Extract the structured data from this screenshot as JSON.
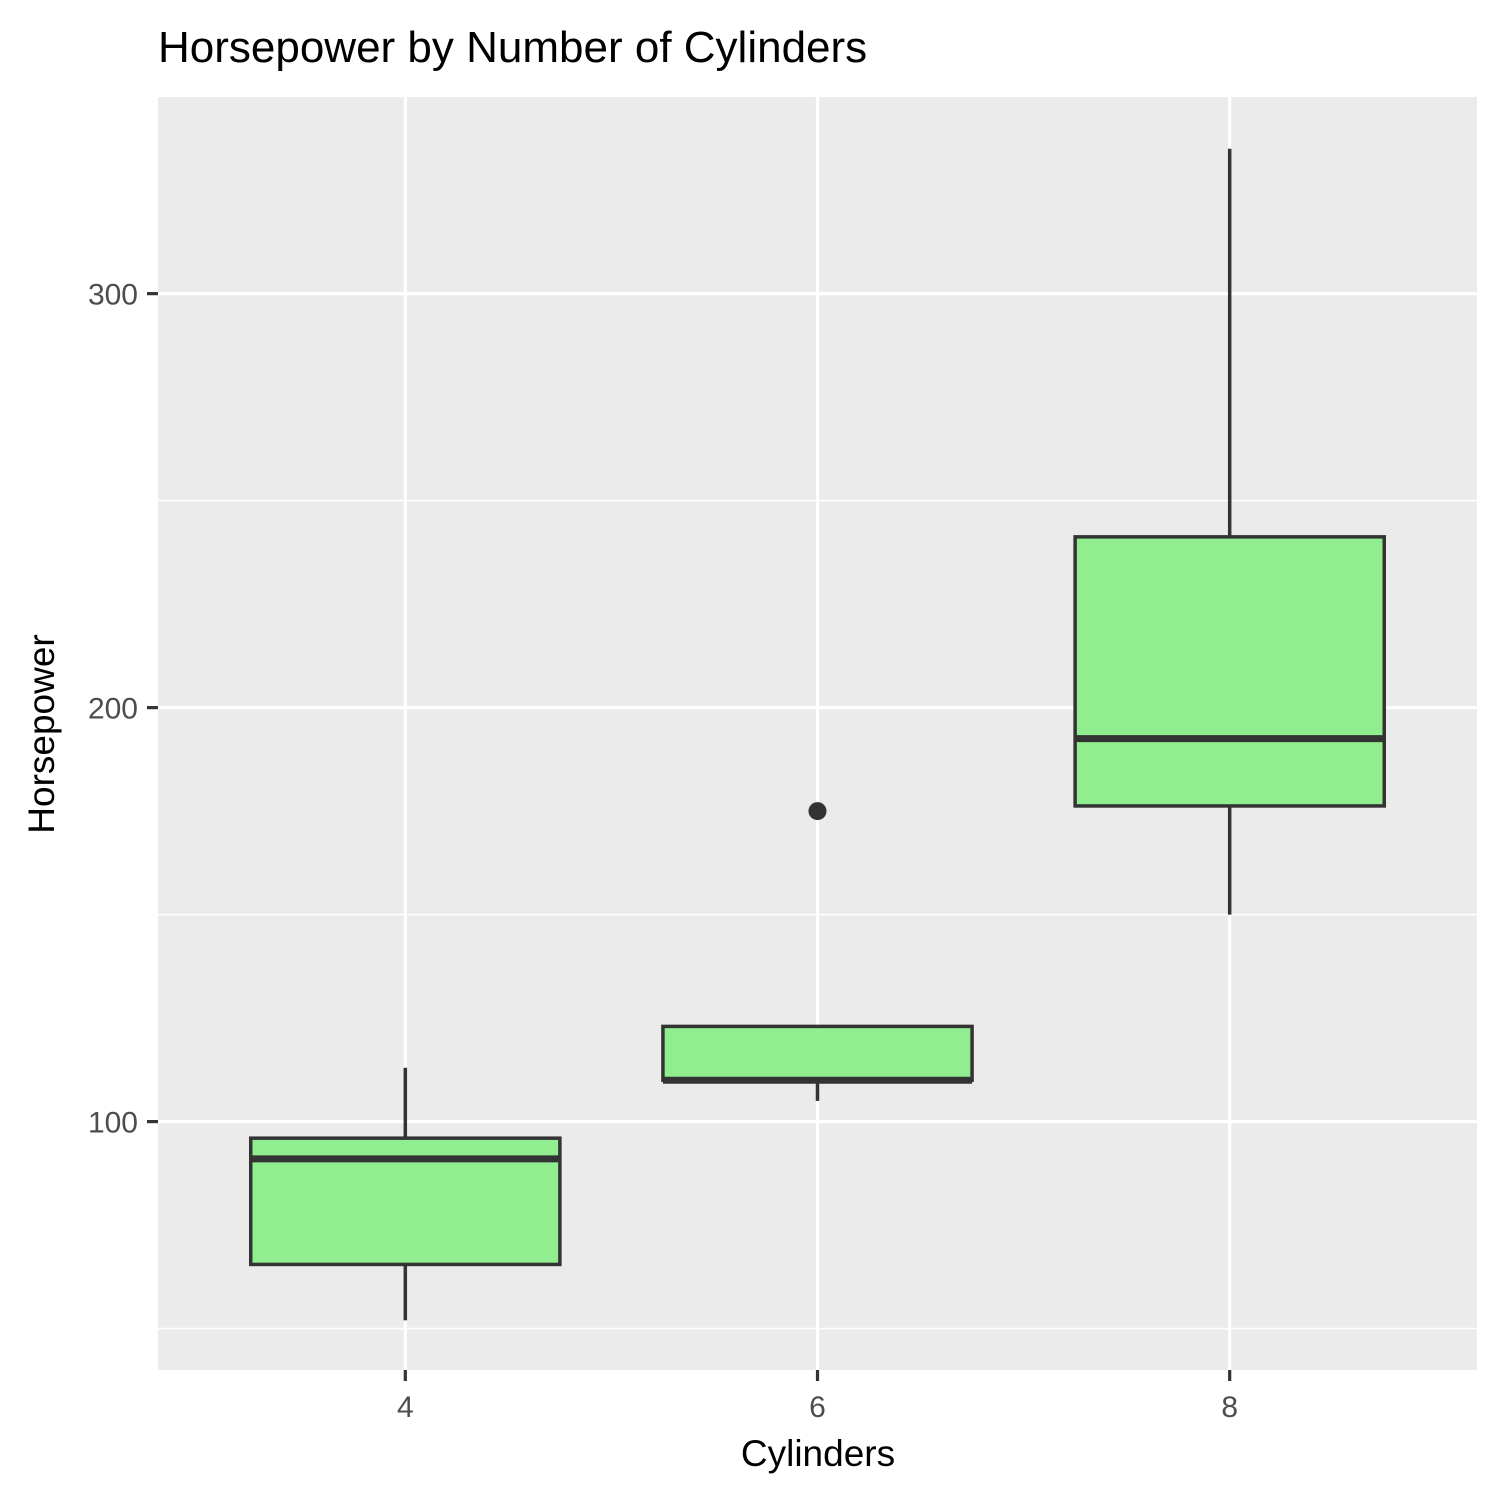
{
  "chart_data": {
    "type": "boxplot",
    "title": "Horsepower by Number of Cylinders",
    "xlabel": "Cylinders",
    "ylabel": "Horsepower",
    "categories": [
      "4",
      "6",
      "8"
    ],
    "boxes": [
      {
        "category": "4",
        "lower_whisker": 52,
        "q1": 65.5,
        "median": 91,
        "q3": 96,
        "upper_whisker": 113,
        "outliers": []
      },
      {
        "category": "6",
        "lower_whisker": 105,
        "q1": 110,
        "median": 110,
        "q3": 123,
        "upper_whisker": 123,
        "outliers": [
          175
        ]
      },
      {
        "category": "8",
        "lower_whisker": 150,
        "q1": 176.25,
        "median": 192.5,
        "q3": 241.25,
        "upper_whisker": 335,
        "outliers": []
      }
    ],
    "y_ticks": [
      "100",
      "200",
      "300"
    ],
    "ylim": [
      40,
      347.5
    ],
    "grid": true,
    "colors": {
      "box_fill": "#90EE90",
      "box_line": "#333333",
      "panel_background": "#EBEBEB",
      "grid": "#FFFFFF"
    }
  }
}
